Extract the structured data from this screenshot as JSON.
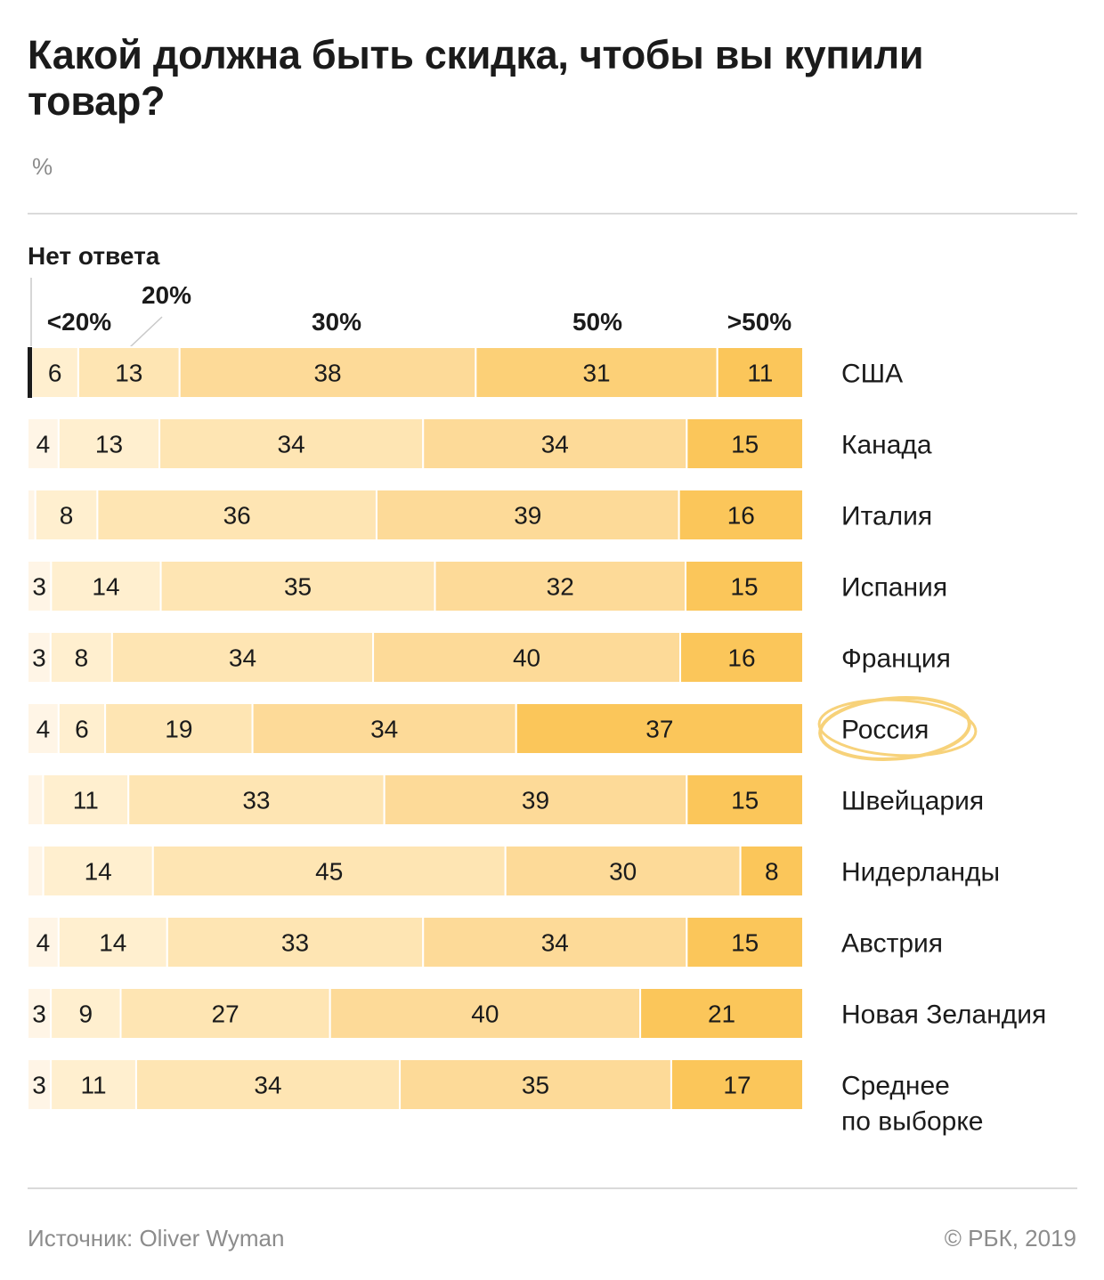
{
  "title": "Какой должна быть скидка, чтобы вы купили товар?",
  "unit": "%",
  "no_answer_label": "Нет ответа",
  "source": "Источник: Oliver Wyman",
  "copyright": "© РБК, 2019",
  "colors": {
    "no_answer": "#fff5e6",
    "lt20": "#ffefcf",
    "p20": "#fee5b3",
    "p30": "#fdda98",
    "p50": "#fcd077",
    "gt50": "#fbc65a",
    "text": "#1b1b1b",
    "highlight": "#f7d27a"
  },
  "chart_data": {
    "type": "bar",
    "orientation": "horizontal",
    "stacked": true,
    "categories": [
      "США",
      "Канада",
      "Италия",
      "Испания",
      "Франция",
      "Россия",
      "Швейцария",
      "Нидерланды",
      "Австрия",
      "Новая Зеландия",
      "Среднее по выборке"
    ],
    "category_lines": [
      [
        "США"
      ],
      [
        "Канада"
      ],
      [
        "Италия"
      ],
      [
        "Испания"
      ],
      [
        "Франция"
      ],
      [
        "Россия"
      ],
      [
        "Швейцария"
      ],
      [
        "Нидерланды"
      ],
      [
        "Австрия"
      ],
      [
        "Новая Зеландия"
      ],
      [
        "Среднее",
        "по выборке"
      ]
    ],
    "highlight": "Россия",
    "series": [
      {
        "name": "Нет ответа",
        "values": [
          0.5,
          4,
          1,
          3,
          3,
          4,
          2,
          2,
          4,
          3,
          3
        ]
      },
      {
        "name": "<20%",
        "values": [
          6,
          13,
          8,
          14,
          8,
          6,
          11,
          14,
          14,
          9,
          11
        ]
      },
      {
        "name": "20%",
        "values": [
          13,
          34,
          36,
          35,
          34,
          19,
          33,
          45,
          33,
          27,
          34
        ]
      },
      {
        "name": "30%",
        "values": [
          38,
          34,
          39,
          32,
          40,
          34,
          39,
          30,
          34,
          40,
          35
        ]
      },
      {
        "name": "50%",
        "values": [
          31,
          15,
          16,
          15,
          16,
          37,
          15,
          8,
          15,
          21,
          17
        ]
      },
      {
        "name": ">50%",
        "values": [
          11,
          null,
          null,
          null,
          null,
          null,
          null,
          null,
          null,
          null,
          null
        ]
      }
    ],
    "segment_labels": [
      [
        null,
        "6",
        "13",
        "38",
        "31",
        "11"
      ],
      [
        "4",
        "13",
        "34",
        "34",
        "15"
      ],
      [
        null,
        "8",
        "36",
        "39",
        "16"
      ],
      [
        "3",
        "14",
        "35",
        "32",
        "15"
      ],
      [
        "3",
        "8",
        "34",
        "40",
        "16"
      ],
      [
        "4",
        "6",
        "19",
        "34",
        "37"
      ],
      [
        null,
        "11",
        "33",
        "39",
        "15"
      ],
      [
        null,
        "14",
        "45",
        "30",
        "8"
      ],
      [
        "4",
        "14",
        "33",
        "34",
        "15"
      ],
      [
        "3",
        "9",
        "27",
        "40",
        "21"
      ],
      [
        "3",
        "11",
        "34",
        "35",
        "17"
      ]
    ],
    "column_labels": [
      "<20%",
      "20%",
      "30%",
      "50%",
      ">50%"
    ],
    "xlim": [
      0,
      100
    ]
  }
}
